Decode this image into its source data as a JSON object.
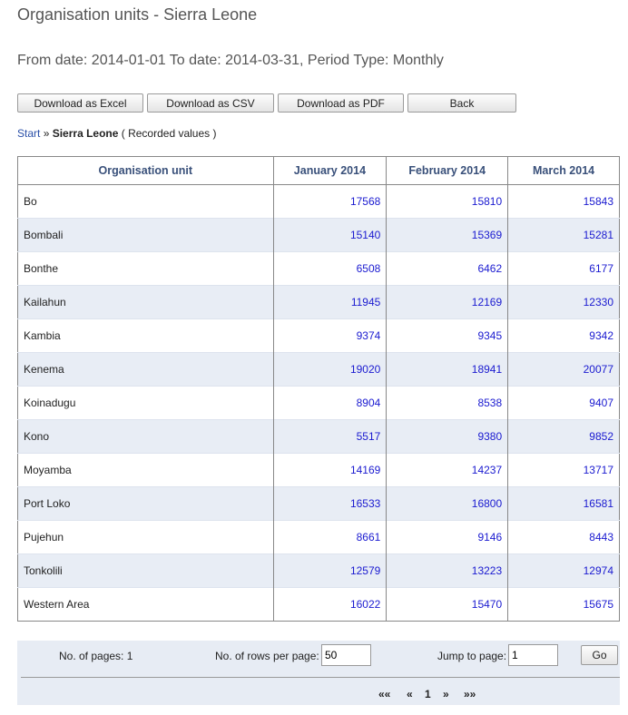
{
  "header": {
    "title": "Organisation units - Sierra Leone",
    "subtitle": "From date: 2014-01-01 To date: 2014-03-31, Period Type: Monthly"
  },
  "toolbar": {
    "excel_label": "Download as Excel",
    "csv_label": "Download as CSV",
    "pdf_label": "Download as PDF",
    "back_label": "Back"
  },
  "breadcrumb": {
    "start": "Start",
    "separator": "»",
    "current": "Sierra Leone",
    "note": "( Recorded values )"
  },
  "table": {
    "columns": [
      "Organisation unit",
      "January 2014",
      "February 2014",
      "March 2014"
    ],
    "rows": [
      {
        "name": "Bo",
        "jan": "17568",
        "feb": "15810",
        "mar": "15843"
      },
      {
        "name": "Bombali",
        "jan": "15140",
        "feb": "15369",
        "mar": "15281"
      },
      {
        "name": "Bonthe",
        "jan": "6508",
        "feb": "6462",
        "mar": "6177"
      },
      {
        "name": "Kailahun",
        "jan": "11945",
        "feb": "12169",
        "mar": "12330"
      },
      {
        "name": "Kambia",
        "jan": "9374",
        "feb": "9345",
        "mar": "9342"
      },
      {
        "name": "Kenema",
        "jan": "19020",
        "feb": "18941",
        "mar": "20077"
      },
      {
        "name": "Koinadugu",
        "jan": "8904",
        "feb": "8538",
        "mar": "9407"
      },
      {
        "name": "Kono",
        "jan": "5517",
        "feb": "9380",
        "mar": "9852"
      },
      {
        "name": "Moyamba",
        "jan": "14169",
        "feb": "14237",
        "mar": "13717"
      },
      {
        "name": "Port Loko",
        "jan": "16533",
        "feb": "16800",
        "mar": "16581"
      },
      {
        "name": "Pujehun",
        "jan": "8661",
        "feb": "9146",
        "mar": "8443"
      },
      {
        "name": "Tonkolili",
        "jan": "12579",
        "feb": "13223",
        "mar": "12974"
      },
      {
        "name": "Western Area",
        "jan": "16022",
        "feb": "15470",
        "mar": "15675"
      }
    ]
  },
  "footer": {
    "pages_label": "No. of pages: 1",
    "rows_label": "No. of rows per page:",
    "rows_value": "50",
    "jump_label": "Jump to page:",
    "jump_value": "1",
    "go_label": "Go",
    "pager": {
      "first": "««",
      "prev": "«",
      "current": "1",
      "next": "»",
      "last": "»»"
    }
  },
  "colors": {
    "link": "#2a4fa8",
    "value": "#1a1ad0",
    "header_text": "#39507a",
    "alt_row": "#e8edf5",
    "footer_bg": "#e7ecf4"
  }
}
